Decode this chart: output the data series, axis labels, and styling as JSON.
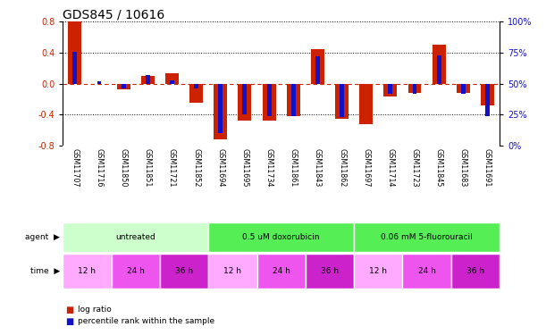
{
  "title": "GDS845 / 10616",
  "samples": [
    "GSM11707",
    "GSM11716",
    "GSM11850",
    "GSM11851",
    "GSM11721",
    "GSM11852",
    "GSM11694",
    "GSM11695",
    "GSM11734",
    "GSM11861",
    "GSM11843",
    "GSM11862",
    "GSM11697",
    "GSM11714",
    "GSM11723",
    "GSM11845",
    "GSM11683",
    "GSM11691"
  ],
  "log_ratio": [
    0.8,
    0.0,
    -0.07,
    0.1,
    0.13,
    -0.25,
    -0.72,
    -0.47,
    -0.48,
    -0.42,
    0.45,
    -0.45,
    -0.52,
    -0.17,
    -0.12,
    0.5,
    -0.12,
    -0.28
  ],
  "percentile_rank_raw": [
    76,
    52,
    46,
    57,
    53,
    46,
    10,
    25,
    24,
    24,
    72,
    23,
    50,
    42,
    42,
    73,
    42,
    24
  ],
  "agent_groups": [
    {
      "label": "untreated",
      "start": 0,
      "end": 6,
      "color": "#ccffcc"
    },
    {
      "label": "0.5 uM doxorubicin",
      "start": 6,
      "end": 12,
      "color": "#55ee55"
    },
    {
      "label": "0.06 mM 5-fluorouracil",
      "start": 12,
      "end": 18,
      "color": "#55ee55"
    }
  ],
  "time_groups": [
    {
      "label": "12 h",
      "start": 0,
      "end": 2,
      "color": "#ffaaff"
    },
    {
      "label": "24 h",
      "start": 2,
      "end": 4,
      "color": "#ee55ee"
    },
    {
      "label": "36 h",
      "start": 4,
      "end": 6,
      "color": "#cc22cc"
    },
    {
      "label": "12 h",
      "start": 6,
      "end": 8,
      "color": "#ffaaff"
    },
    {
      "label": "24 h",
      "start": 8,
      "end": 10,
      "color": "#ee55ee"
    },
    {
      "label": "36 h",
      "start": 10,
      "end": 12,
      "color": "#cc22cc"
    },
    {
      "label": "12 h",
      "start": 12,
      "end": 14,
      "color": "#ffaaff"
    },
    {
      "label": "24 h",
      "start": 14,
      "end": 16,
      "color": "#ee55ee"
    },
    {
      "label": "36 h",
      "start": 16,
      "end": 18,
      "color": "#cc22cc"
    }
  ],
  "ylim": [
    -0.8,
    0.8
  ],
  "yticks": [
    -0.8,
    -0.4,
    0.0,
    0.4,
    0.8
  ],
  "right_yticks": [
    0,
    25,
    50,
    75,
    100
  ],
  "bar_color_red": "#cc2200",
  "bar_color_blue": "#1111cc",
  "dotted_line_color": "#000000",
  "zero_line_color": "#cc2200",
  "background_color": "#ffffff",
  "sample_bg_color": "#cccccc",
  "title_fontsize": 10,
  "tick_fontsize": 7,
  "label_fontsize": 7,
  "bar_width": 0.55,
  "blue_bar_width": 0.18
}
